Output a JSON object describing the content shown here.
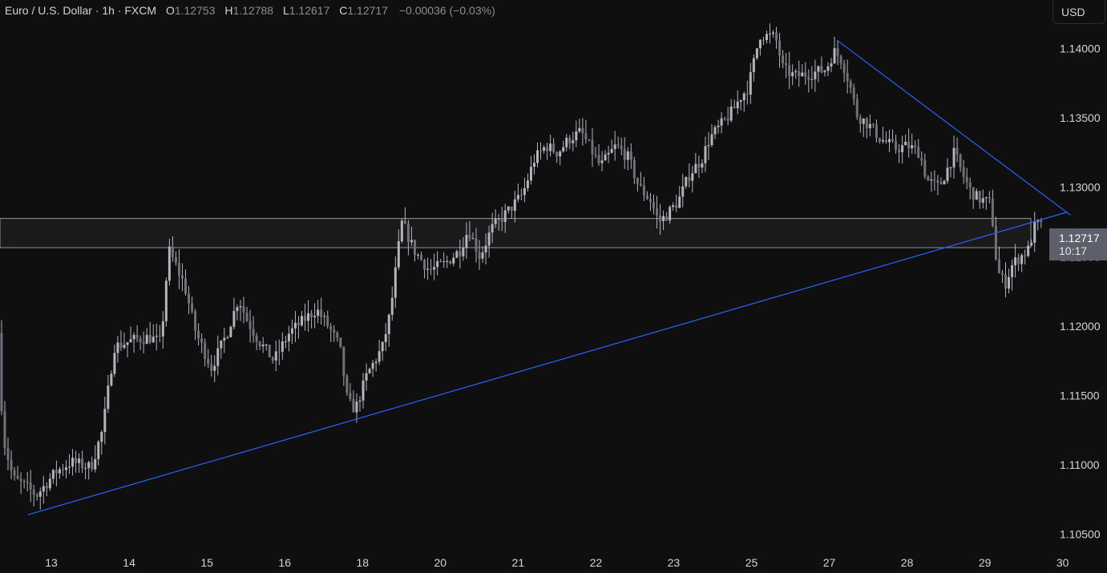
{
  "header": {
    "symbol": "Euro / U.S. Dollar · 1h · FXCM",
    "open_label": "O",
    "open": "1.12753",
    "high_label": "H",
    "high": "1.12788",
    "low_label": "L",
    "low": "1.12617",
    "close_label": "C",
    "close": "1.12717",
    "change": "−0.00036 (−0.03%)"
  },
  "currency_button": "USD",
  "last_price": {
    "price": "1.12717",
    "countdown": "10:17"
  },
  "colors": {
    "background": "#0f0f0f",
    "candle": "#b2b5be",
    "trendline": "#2962ff",
    "zone_border": "#b2b5be",
    "zone_fill": "#1c1c1c",
    "price_tag": "#5d606b"
  },
  "chart_data": {
    "type": "candlestick",
    "symbol": "EUR/USD",
    "timeframe": "1h",
    "y_ticks": [
      1.105,
      1.11,
      1.115,
      1.12,
      1.125,
      1.13,
      1.135,
      1.14
    ],
    "y_tick_labels": [
      "1.10500",
      "1.11000",
      "1.11500",
      "1.12000",
      "1.12500",
      "1.13000",
      "1.13500",
      "1.14000"
    ],
    "ylim": [
      1.1022,
      1.1435
    ],
    "x_ticks": [
      "13",
      "14",
      "15",
      "16",
      "18",
      "20",
      "21",
      "22",
      "23",
      "25",
      "27",
      "28",
      "29",
      "30"
    ],
    "x_tick_pos": [
      13.0,
      14.0,
      15.0,
      16.0,
      17.0,
      18.0,
      19.0,
      20.0,
      21.0,
      22.0,
      23.0,
      24.0,
      25.0,
      26.0
    ],
    "xlim": [
      12.34,
      26.57
    ],
    "price_anchors": [
      [
        12.34,
        1.122
      ],
      [
        12.42,
        1.112
      ],
      [
        12.55,
        1.109
      ],
      [
        12.7,
        1.1085
      ],
      [
        12.85,
        1.1078
      ],
      [
        13.1,
        1.1095
      ],
      [
        13.3,
        1.1102
      ],
      [
        13.55,
        1.1098
      ],
      [
        13.7,
        1.1125
      ],
      [
        13.85,
        1.1185
      ],
      [
        14.1,
        1.119
      ],
      [
        14.3,
        1.1192
      ],
      [
        14.45,
        1.1188
      ],
      [
        14.55,
        1.1255
      ],
      [
        14.75,
        1.123
      ],
      [
        14.9,
        1.1195
      ],
      [
        15.1,
        1.117
      ],
      [
        15.3,
        1.1195
      ],
      [
        15.45,
        1.122
      ],
      [
        15.55,
        1.1205
      ],
      [
        15.7,
        1.119
      ],
      [
        15.9,
        1.1175
      ],
      [
        16.1,
        1.1195
      ],
      [
        16.3,
        1.1205
      ],
      [
        16.45,
        1.1212
      ],
      [
        16.6,
        1.12
      ],
      [
        16.75,
        1.1185
      ],
      [
        16.85,
        1.1145
      ],
      [
        16.95,
        1.114
      ],
      [
        17.1,
        1.1165
      ],
      [
        17.3,
        1.1185
      ],
      [
        17.4,
        1.121
      ],
      [
        17.5,
        1.1255
      ],
      [
        17.55,
        1.1275
      ],
      [
        17.7,
        1.1255
      ],
      [
        17.9,
        1.124
      ],
      [
        18.1,
        1.1245
      ],
      [
        18.3,
        1.1255
      ],
      [
        18.4,
        1.127
      ],
      [
        18.55,
        1.125
      ],
      [
        18.7,
        1.127
      ],
      [
        18.9,
        1.1282
      ],
      [
        19.1,
        1.1295
      ],
      [
        19.25,
        1.132
      ],
      [
        19.4,
        1.133
      ],
      [
        19.55,
        1.1325
      ],
      [
        19.7,
        1.1335
      ],
      [
        19.85,
        1.134
      ],
      [
        20.0,
        1.1325
      ],
      [
        20.1,
        1.1315
      ],
      [
        20.3,
        1.133
      ],
      [
        20.45,
        1.1322
      ],
      [
        20.6,
        1.13
      ],
      [
        20.75,
        1.129
      ],
      [
        20.85,
        1.1275
      ],
      [
        20.95,
        1.128
      ],
      [
        21.1,
        1.129
      ],
      [
        21.25,
        1.131
      ],
      [
        21.4,
        1.132
      ],
      [
        21.5,
        1.1335
      ],
      [
        21.65,
        1.1345
      ],
      [
        21.8,
        1.1355
      ],
      [
        21.9,
        1.1365
      ],
      [
        22.0,
        1.1372
      ],
      [
        22.15,
        1.141
      ],
      [
        22.35,
        1.1408
      ],
      [
        22.45,
        1.1385
      ],
      [
        22.6,
        1.138
      ],
      [
        22.8,
        1.1382
      ],
      [
        23.0,
        1.1385
      ],
      [
        23.1,
        1.1398
      ],
      [
        23.2,
        1.1392
      ],
      [
        23.3,
        1.1375
      ],
      [
        23.4,
        1.1352
      ],
      [
        23.55,
        1.1345
      ],
      [
        23.7,
        1.1335
      ],
      [
        23.9,
        1.1328
      ],
      [
        24.05,
        1.133
      ],
      [
        24.2,
        1.1325
      ],
      [
        24.3,
        1.1305
      ],
      [
        24.45,
        1.13
      ],
      [
        24.55,
        1.1312
      ],
      [
        24.65,
        1.1325
      ],
      [
        24.75,
        1.131
      ],
      [
        24.85,
        1.1298
      ],
      [
        24.95,
        1.1292
      ],
      [
        25.05,
        1.129
      ],
      [
        25.12,
        1.1288
      ],
      [
        25.2,
        1.124
      ],
      [
        25.3,
        1.123
      ],
      [
        25.4,
        1.1245
      ],
      [
        25.5,
        1.125
      ],
      [
        25.6,
        1.1255
      ],
      [
        25.7,
        1.1275
      ],
      [
        25.75,
        1.12717
      ]
    ],
    "zone": {
      "top": 1.12775,
      "bottom": 1.12565
    },
    "trendlines": [
      {
        "from": [
          12.7,
          1.1064
        ],
        "to": [
          26.05,
          1.1282
        ]
      },
      {
        "from": [
          23.1,
          1.1406
        ],
        "to": [
          26.1,
          1.128
        ]
      }
    ]
  }
}
